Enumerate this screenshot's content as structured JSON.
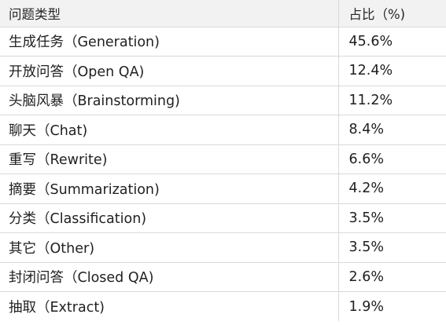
{
  "table": {
    "headers": [
      "问题类型",
      "占比（%)"
    ],
    "rows": [
      {
        "type": "生成任务（Generation)",
        "percent": "45.6%"
      },
      {
        "type": "开放问答（Open QA)",
        "percent": "12.4%"
      },
      {
        "type": "头脑风暴（Brainstorming)",
        "percent": "11.2%"
      },
      {
        "type": "聊天（Chat)",
        "percent": "8.4%"
      },
      {
        "type": "重写（Rewrite)",
        "percent": "6.6%"
      },
      {
        "type": "摘要（Summarization)",
        "percent": "4.2%"
      },
      {
        "type": "分类（Classification)",
        "percent": "3.5%"
      },
      {
        "type": "其它（Other)",
        "percent": "3.5%"
      },
      {
        "type": "封闭问答（Closed QA)",
        "percent": "2.6%"
      },
      {
        "type": "抽取（Extract)",
        "percent": "1.9%"
      }
    ]
  }
}
